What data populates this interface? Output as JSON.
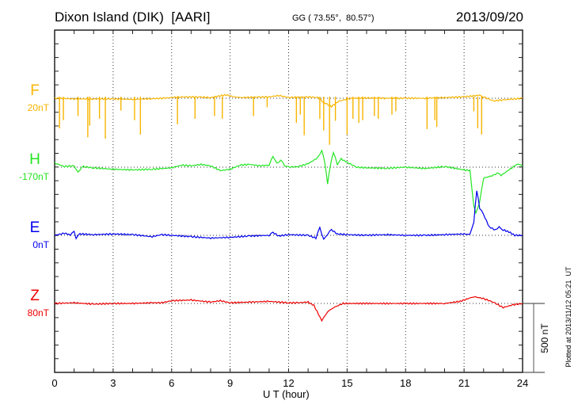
{
  "header": {
    "station": "Dixon Island (DIK)  [AARI]",
    "coords": "GG ( 73.55°,  80.57°)",
    "date": "2013/09/20"
  },
  "footer": {
    "plotted": "Plotted at 2013/11/12 05:21  UT",
    "scale_label": "500 nT"
  },
  "chart_data": {
    "type": "line",
    "title": "Dixon Island (DIK)  [AARI]",
    "xlabel": "U T (hour)",
    "ylabel": "",
    "xlim": [
      0,
      24
    ],
    "xticks": [
      "0",
      "3",
      "6",
      "9",
      "12",
      "15",
      "18",
      "21",
      "24"
    ],
    "scale_bar_nT": 500,
    "grid": "dotted vertical every 3 hours, dotted baselines",
    "series": [
      {
        "name": "F",
        "baseline_label": "20nT",
        "color": "#f8b400",
        "points": [
          [
            0,
            0
          ],
          [
            1,
            -5
          ],
          [
            2,
            -5
          ],
          [
            3,
            -5
          ],
          [
            4,
            -8
          ],
          [
            5,
            -3
          ],
          [
            5.5,
            0
          ],
          [
            6.5,
            10
          ],
          [
            7.5,
            8
          ],
          [
            8,
            5
          ],
          [
            8.8,
            25
          ],
          [
            9.2,
            10
          ],
          [
            9.5,
            5
          ],
          [
            10.5,
            8
          ],
          [
            11,
            10
          ],
          [
            11.5,
            20
          ],
          [
            12,
            5
          ],
          [
            13,
            10
          ],
          [
            13.5,
            5
          ],
          [
            13.8,
            -30
          ],
          [
            14.2,
            -60
          ],
          [
            14.6,
            -20
          ],
          [
            15.2,
            0
          ],
          [
            16,
            2
          ],
          [
            17,
            0
          ],
          [
            18,
            0
          ],
          [
            19,
            0
          ],
          [
            20,
            5
          ],
          [
            21,
            10
          ],
          [
            21.8,
            22
          ],
          [
            22,
            10
          ],
          [
            22.5,
            -20
          ],
          [
            23,
            -12
          ],
          [
            24,
            0
          ]
        ],
        "spikes": [
          [
            0.25,
            -220
          ],
          [
            0.45,
            -160
          ],
          [
            1.2,
            -130
          ],
          [
            1.7,
            -285
          ],
          [
            1.8,
            -200
          ],
          [
            2.3,
            -150
          ],
          [
            2.6,
            -295
          ],
          [
            3.4,
            -90
          ],
          [
            4.1,
            -160
          ],
          [
            4.4,
            -265
          ],
          [
            6.3,
            -190
          ],
          [
            7.2,
            -150
          ],
          [
            8.2,
            -130
          ],
          [
            8.6,
            -150
          ],
          [
            10.2,
            -130
          ],
          [
            10.9,
            -65
          ],
          [
            12.4,
            -180
          ],
          [
            12.6,
            -120
          ],
          [
            12.8,
            -270
          ],
          [
            13.6,
            -150
          ],
          [
            13.8,
            -235
          ],
          [
            14.1,
            -340
          ],
          [
            14.4,
            -165
          ],
          [
            15.0,
            -265
          ],
          [
            15.3,
            -150
          ],
          [
            15.6,
            -180
          ],
          [
            15.8,
            -160
          ],
          [
            16.4,
            -130
          ],
          [
            16.6,
            -150
          ],
          [
            17.3,
            -120
          ],
          [
            17.5,
            -95
          ],
          [
            19.1,
            -225
          ],
          [
            19.5,
            -160
          ],
          [
            19.6,
            -210
          ],
          [
            21.5,
            -95
          ],
          [
            21.7,
            -220
          ],
          [
            21.9,
            -265
          ]
        ]
      },
      {
        "name": "H",
        "baseline_label": "-170nT",
        "color": "#22e622",
        "points": [
          [
            0,
            30
          ],
          [
            0.5,
            5
          ],
          [
            1,
            10
          ],
          [
            1.2,
            -40
          ],
          [
            1.4,
            5
          ],
          [
            2,
            -5
          ],
          [
            3,
            -15
          ],
          [
            4,
            -20
          ],
          [
            5,
            -15
          ],
          [
            6,
            -5
          ],
          [
            6.5,
            15
          ],
          [
            7,
            10
          ],
          [
            7.5,
            20
          ],
          [
            8,
            10
          ],
          [
            8.5,
            -25
          ],
          [
            9,
            -15
          ],
          [
            9.5,
            15
          ],
          [
            10,
            20
          ],
          [
            10.5,
            10
          ],
          [
            11,
            15
          ],
          [
            11.2,
            80
          ],
          [
            11.4,
            25
          ],
          [
            11.6,
            55
          ],
          [
            11.8,
            10
          ],
          [
            12,
            0
          ],
          [
            12.5,
            5
          ],
          [
            13,
            25
          ],
          [
            13.5,
            70
          ],
          [
            13.7,
            125
          ],
          [
            13.85,
            40
          ],
          [
            14,
            -120
          ],
          [
            14.15,
            20
          ],
          [
            14.3,
            110
          ],
          [
            14.5,
            20
          ],
          [
            14.7,
            60
          ],
          [
            15,
            35
          ],
          [
            15.5,
            0
          ],
          [
            16,
            -5
          ],
          [
            17,
            -8
          ],
          [
            18,
            0
          ],
          [
            19,
            -10
          ],
          [
            20,
            5
          ],
          [
            21,
            -20
          ],
          [
            21.3,
            -25
          ],
          [
            21.5,
            -280
          ],
          [
            21.6,
            -340
          ],
          [
            21.8,
            -250
          ],
          [
            22,
            -80
          ],
          [
            22.5,
            -60
          ],
          [
            22.7,
            -40
          ],
          [
            22.9,
            -60
          ],
          [
            23.3,
            -20
          ],
          [
            23.6,
            10
          ],
          [
            23.8,
            25
          ],
          [
            24,
            5
          ]
        ]
      },
      {
        "name": "E",
        "baseline_label": "0nT",
        "color": "#0000ee",
        "points": [
          [
            0,
            0
          ],
          [
            0.5,
            15
          ],
          [
            0.8,
            5
          ],
          [
            1,
            25
          ],
          [
            1.1,
            -20
          ],
          [
            1.3,
            10
          ],
          [
            2,
            5
          ],
          [
            3,
            10
          ],
          [
            4,
            5
          ],
          [
            5,
            -10
          ],
          [
            5.5,
            5
          ],
          [
            6,
            0
          ],
          [
            7,
            -10
          ],
          [
            8,
            -20
          ],
          [
            9,
            -15
          ],
          [
            10,
            -5
          ],
          [
            11,
            0
          ],
          [
            11.2,
            20
          ],
          [
            11.5,
            -5
          ],
          [
            12,
            5
          ],
          [
            13,
            0
          ],
          [
            13.4,
            -20
          ],
          [
            13.6,
            55
          ],
          [
            13.8,
            -30
          ],
          [
            14,
            10
          ],
          [
            14.2,
            40
          ],
          [
            14.5,
            10
          ],
          [
            15,
            5
          ],
          [
            16,
            0
          ],
          [
            17,
            5
          ],
          [
            18,
            0
          ],
          [
            19,
            0
          ],
          [
            20,
            5
          ],
          [
            21,
            10
          ],
          [
            21.3,
            5
          ],
          [
            21.5,
            100
          ],
          [
            21.65,
            330
          ],
          [
            21.8,
            200
          ],
          [
            22,
            150
          ],
          [
            22.3,
            60
          ],
          [
            22.6,
            40
          ],
          [
            22.8,
            60
          ],
          [
            23,
            40
          ],
          [
            23.3,
            25
          ],
          [
            23.6,
            0
          ],
          [
            24,
            0
          ]
        ]
      },
      {
        "name": "Z",
        "baseline_label": "80nT",
        "color": "#ee0000",
        "points": [
          [
            0,
            0
          ],
          [
            1,
            5
          ],
          [
            2,
            -5
          ],
          [
            3,
            0
          ],
          [
            4,
            0
          ],
          [
            5,
            5
          ],
          [
            5.5,
            5
          ],
          [
            6,
            20
          ],
          [
            7,
            25
          ],
          [
            8,
            10
          ],
          [
            8.5,
            20
          ],
          [
            9,
            5
          ],
          [
            10,
            10
          ],
          [
            11,
            15
          ],
          [
            12,
            5
          ],
          [
            12.5,
            5
          ],
          [
            13,
            10
          ],
          [
            13.3,
            -15
          ],
          [
            13.7,
            -125
          ],
          [
            14,
            -60
          ],
          [
            14.3,
            -30
          ],
          [
            14.8,
            0
          ],
          [
            16,
            0
          ],
          [
            18,
            0
          ],
          [
            20,
            0
          ],
          [
            20.8,
            15
          ],
          [
            21.5,
            50
          ],
          [
            22,
            35
          ],
          [
            22.5,
            10
          ],
          [
            23,
            -30
          ],
          [
            23.5,
            -10
          ],
          [
            24,
            0
          ]
        ]
      }
    ]
  }
}
